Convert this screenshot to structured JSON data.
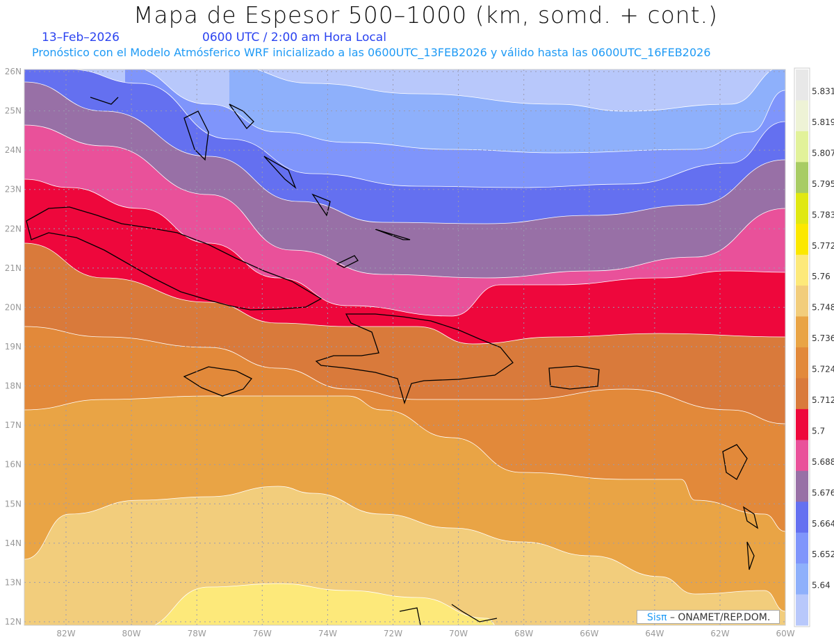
{
  "header": {
    "title": "Mapa de Espesor 500–1000 (km, somd. + cont.)",
    "date": "13–Feb–2026",
    "time": "0600 UTC / 2:00 am Hora Local",
    "subtitle": "Pronóstico con el Modelo Atmósferico WRF inicializado a las 0600UTC_13FEB2026 y válido hasta las  0600UTC_16FEB2026"
  },
  "map": {
    "lon_ticks": [
      "82W",
      "80W",
      "78W",
      "76W",
      "74W",
      "72W",
      "70W",
      "68W",
      "66W",
      "64W",
      "62W",
      "60W"
    ],
    "lat_ticks": [
      "26N",
      "25N",
      "24N",
      "23N",
      "22N",
      "21N",
      "20N",
      "19N",
      "18N",
      "17N",
      "16N",
      "15N",
      "14N",
      "13N",
      "12N"
    ]
  },
  "colorbar": {
    "colors": [
      "#e8e8e8",
      "#eef3d6",
      "#e2f29a",
      "#a8cc64",
      "#e0e812",
      "#fce800",
      "#fde97a",
      "#f2cd7c",
      "#e9a445",
      "#e2893a",
      "#d97a3b",
      "#ee073c",
      "#e9519a",
      "#9870a6",
      "#6470f0",
      "#7f95fb",
      "#8eb0fb",
      "#b8c8fb"
    ],
    "labels": [
      "5.831",
      "5.819",
      "5.807",
      "5.795",
      "5.783",
      "5.772",
      "5.76",
      "5.748",
      "5.736",
      "5.724",
      "5.712",
      "5.7",
      "5.688",
      "5.676",
      "5.664",
      "5.652",
      "5.64"
    ]
  },
  "credit": {
    "brand": "Sisπ",
    "text": " –  ONAMET/REP.DOM."
  }
}
